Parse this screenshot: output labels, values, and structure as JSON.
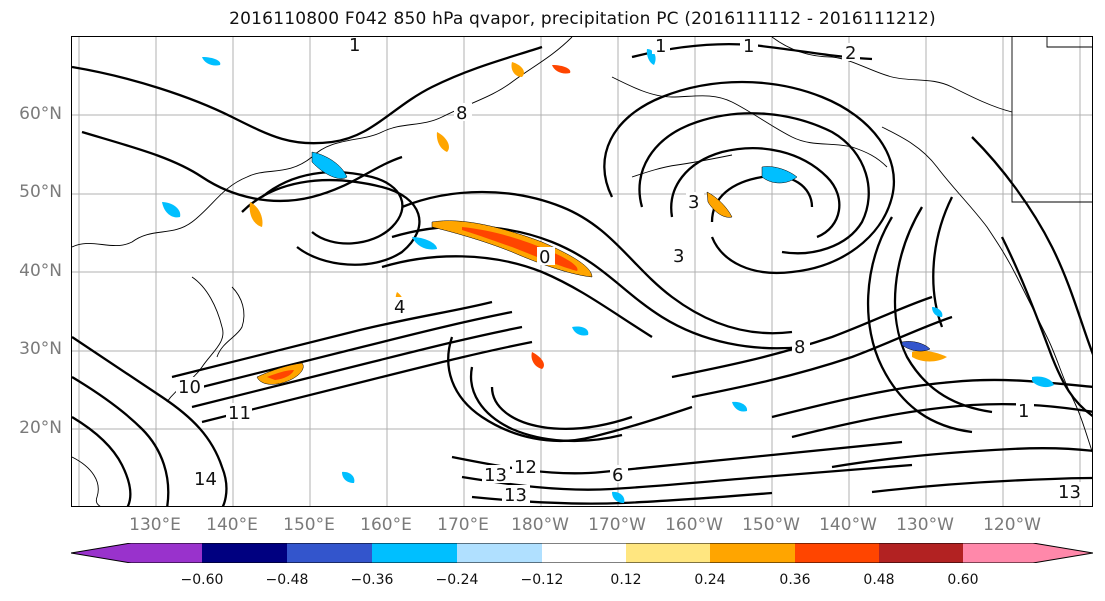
{
  "title": "2016110800 F042 850 hPa qvapor, precipitation PC (2016111112 - 2016111212)",
  "map": {
    "lat_labels": [
      "60°N",
      "50°N",
      "40°N",
      "30°N",
      "20°N"
    ],
    "lon_labels": [
      "130°E",
      "140°E",
      "150°E",
      "160°E",
      "170°E",
      "180°W",
      "170°W",
      "160°W",
      "150°W",
      "140°W",
      "130°W",
      "120°W"
    ],
    "contour_labels": [
      "1",
      "1",
      "1",
      "2",
      "3",
      "3",
      "0",
      "4",
      "8",
      "10",
      "11",
      "13",
      "13",
      "13",
      "12",
      "14",
      "8",
      "6",
      "1"
    ]
  },
  "colorbar": {
    "ticks": [
      "−0.60",
      "−0.48",
      "−0.36",
      "−0.24",
      "−0.12",
      "0.12",
      "0.24",
      "0.36",
      "0.48",
      "0.60"
    ],
    "colors": [
      "#9932cc",
      "#000080",
      "#3355cc",
      "#00bfff",
      "#b0e0ff",
      "#ffffff",
      "#ffe680",
      "#ffa500",
      "#ff4500",
      "#b22222",
      "#ff88aa"
    ]
  }
}
